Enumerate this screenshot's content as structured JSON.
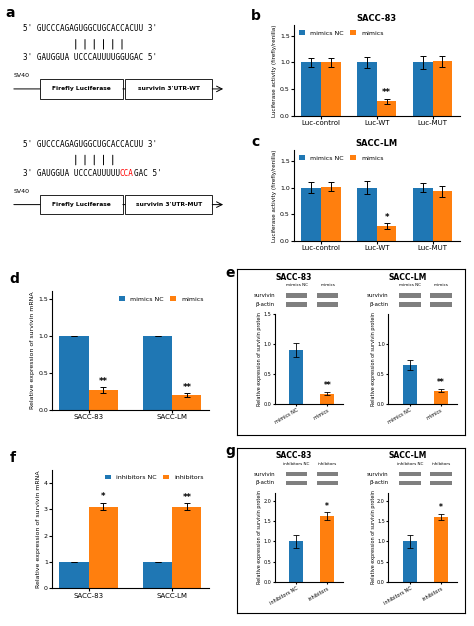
{
  "chart_data": [
    {
      "type": "diagram",
      "annotations": [
        {
          "text": "a"
        }
      ],
      "constructs": [
        {
          "top": "5' GUCCCAGAGUGGCUGCACCACUU 3'",
          "pairs": 6,
          "bottom": [
            {
              "text": "3' GAUGGUA UCCCAUUUUGGUGAC 5'"
            }
          ],
          "promoter": "SV40",
          "boxes": [
            "Firefly Luciferase",
            "survivin 3'UTR-WT"
          ]
        },
        {
          "top": "5' GUCCCAGAGUGGCUGCACCACUU 3'",
          "pairs": 5,
          "bottom": [
            {
              "text": "3' GAUGGUA UCCCAUUUUU"
            },
            {
              "text": "CCA",
              "color": "red"
            },
            {
              "text": "GAC 5'"
            }
          ],
          "promoter": "SV40",
          "boxes": [
            "Firefly Luciferase",
            "survivin 3'UTR-MUT"
          ]
        }
      ]
    },
    {
      "type": "bar",
      "title": "SACC-83",
      "categories": [
        "Luc-control",
        "Luc-WT",
        "Luc-MUT"
      ],
      "series": [
        {
          "name": "mimics NC",
          "values": [
            1.0,
            1.0,
            1.0
          ],
          "errors": [
            0.08,
            0.1,
            0.12
          ]
        },
        {
          "name": "mimics",
          "values": [
            1.0,
            0.27,
            1.02
          ],
          "errors": [
            0.08,
            0.05,
            0.1
          ]
        }
      ],
      "ylabel": "Luciferase activity (firefly/renilla)",
      "ylim": [
        0,
        1.7
      ],
      "yticks": [
        {
          "value": 0.0,
          "label": "0.0"
        },
        0.5,
        {
          "value": 1.0,
          "label": "1.0"
        },
        1.5
      ],
      "legend": "upper left",
      "annotations": [
        {
          "text": "b"
        },
        {
          "text": "**",
          "category": "Luc-WT",
          "series": "mimics"
        }
      ]
    },
    {
      "type": "bar",
      "title": "SACC-LM",
      "categories": [
        "Luc-control",
        "Luc-WT",
        "Luc-MUT"
      ],
      "series": [
        {
          "name": "mimics NC",
          "values": [
            1.0,
            1.0,
            1.0
          ],
          "errors": [
            0.1,
            0.12,
            0.08
          ]
        },
        {
          "name": "mimics",
          "values": [
            1.02,
            0.28,
            0.93
          ],
          "errors": [
            0.08,
            0.05,
            0.1
          ]
        }
      ],
      "ylabel": "Luciferase activity (firefly/renilla)",
      "ylim": [
        0,
        1.7
      ],
      "yticks": [
        {
          "value": 0.0,
          "label": "0.0"
        },
        0.5,
        {
          "value": 1.0,
          "label": "1.0"
        },
        1.5
      ],
      "legend": "upper left",
      "annotations": [
        {
          "text": "c"
        },
        {
          "text": "*",
          "category": "Luc-WT",
          "series": "mimics"
        }
      ]
    },
    {
      "type": "bar",
      "categories": [
        "SACC-83",
        "SACC-LM"
      ],
      "series": [
        {
          "name": "mimics NC",
          "values": [
            1.0,
            1.0
          ],
          "errors": [
            0.0,
            0.0
          ]
        },
        {
          "name": "mimics",
          "values": [
            0.27,
            0.2
          ],
          "errors": [
            0.04,
            0.03
          ]
        }
      ],
      "ylabel": "Relative expression of survivin mRNA",
      "ylim": [
        0,
        1.6
      ],
      "yticks": [
        {
          "value": 0.0,
          "label": "0.0"
        },
        0.5,
        {
          "value": 1.0,
          "label": "1.0"
        },
        1.5
      ],
      "legend": "upper right",
      "annotations": [
        {
          "text": "d"
        },
        {
          "text": "**",
          "category": "SACC-83",
          "series": "mimics"
        },
        {
          "text": "**",
          "category": "SACC-LM",
          "series": "mimics"
        }
      ]
    },
    {
      "type": "bar",
      "title": "SACC-83",
      "categories": [
        "mimics NC",
        "mimics"
      ],
      "values": [
        0.9,
        0.17
      ],
      "errors": [
        0.12,
        0.03
      ],
      "ylabel": "Relative expression of survivin protein",
      "ylim": [
        0,
        1.5
      ],
      "yticks": [
        {
          "value": 0.0,
          "label": "0.0"
        },
        0.5,
        {
          "value": 1.0,
          "label": "1.0"
        },
        1.5
      ],
      "blot": {
        "rows": [
          "survivin",
          "β-actin"
        ],
        "color": "#7f7f7f"
      },
      "annotations": [
        {
          "text": "e"
        },
        {
          "text": "**",
          "category": "mimics"
        }
      ]
    },
    {
      "type": "bar",
      "title": "SACC-LM",
      "categories": [
        "mimics NC",
        "mimics"
      ],
      "values": [
        0.65,
        0.22
      ],
      "errors": [
        0.08,
        0.03
      ],
      "ylabel": "Relative expression of survivin protein",
      "ylim": [
        0,
        1.5
      ],
      "yticks": [
        {
          "value": 0.0,
          "label": "0.0"
        },
        0.5,
        {
          "value": 1.0,
          "label": "1.0"
        }
      ],
      "blot": {
        "rows": [
          "survivin",
          "β-actin"
        ],
        "color": "#7f7f7f"
      },
      "annotations": [
        {
          "text": "**",
          "category": "mimics"
        }
      ]
    },
    {
      "type": "bar",
      "categories": [
        "SACC-83",
        "SACC-LM"
      ],
      "series": [
        {
          "name": "inhibitors NC",
          "values": [
            1.0,
            1.0
          ],
          "errors": [
            0.0,
            0.0
          ]
        },
        {
          "name": "inhibitors",
          "values": [
            3.1,
            3.1
          ],
          "errors": [
            0.15,
            0.12
          ]
        }
      ],
      "ylabel": "Relative expression of survivin mRNA",
      "ylim": [
        0,
        4.5
      ],
      "yticks": [
        0,
        1,
        2,
        3,
        4
      ],
      "legend": "upper right",
      "annotations": [
        {
          "text": "f"
        },
        {
          "text": "*",
          "category": "SACC-83",
          "series": "inhibitors"
        },
        {
          "text": "**",
          "category": "SACC-LM",
          "series": "inhibitors"
        }
      ]
    },
    {
      "type": "bar",
      "title": "SACC-83",
      "categories": [
        "inhibitors NC",
        "inhibitors"
      ],
      "values": [
        1.0,
        1.62
      ],
      "errors": [
        0.15,
        0.1
      ],
      "ylabel": "Relative expression of survivin protein",
      "ylim": [
        0,
        2.2
      ],
      "yticks": [
        {
          "value": 0.0,
          "label": "0.0"
        },
        0.5,
        {
          "value": 1.0,
          "label": "1.0"
        },
        1.5,
        {
          "value": 2.0,
          "label": "2.0"
        }
      ],
      "blot": {
        "rows": [
          "survivin",
          "β-actin"
        ],
        "color": "#7f7f7f"
      },
      "annotations": [
        {
          "text": "g"
        },
        {
          "text": "*",
          "category": "inhibitors"
        }
      ]
    },
    {
      "type": "bar",
      "title": "SACC-LM",
      "categories": [
        "inhibitors NC",
        "inhibitors"
      ],
      "values": [
        1.0,
        1.6
      ],
      "errors": [
        0.15,
        0.08
      ],
      "ylabel": "Relative expression of survivin protein",
      "ylim": [
        0,
        2.2
      ],
      "yticks": [
        {
          "value": 0.0,
          "label": "0.0"
        },
        0.5,
        {
          "value": 1.0,
          "label": "1.0"
        },
        1.5,
        {
          "value": 2.0,
          "label": "2.0"
        }
      ],
      "blot": {
        "rows": [
          "survivin",
          "β-actin"
        ],
        "color": "#7f7f7f"
      },
      "annotations": [
        {
          "text": "*",
          "category": "inhibitors"
        }
      ]
    }
  ]
}
